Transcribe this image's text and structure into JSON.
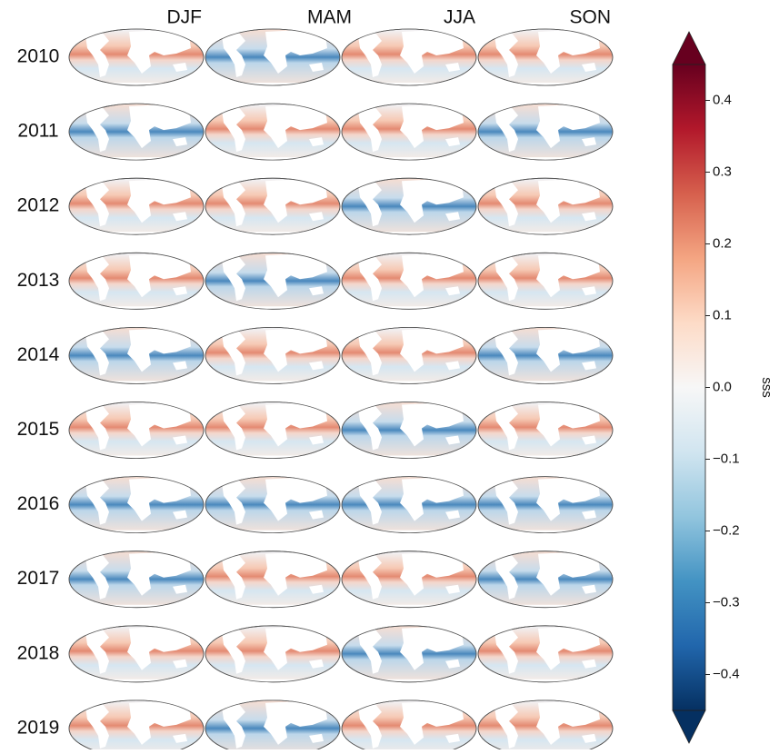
{
  "chart_data": {
    "type": "map-grid",
    "columns": [
      "DJF",
      "MAM",
      "JJA",
      "SON"
    ],
    "rows": [
      "2010",
      "2011",
      "2012",
      "2013",
      "2014",
      "2015",
      "2016",
      "2017",
      "2018",
      "2019"
    ],
    "colorbar": {
      "label": "sss",
      "lim": [
        -0.45,
        0.45
      ],
      "ticks": [
        {
          "value": -0.4,
          "label": "−0.4"
        },
        {
          "value": -0.3,
          "label": "−0.3"
        },
        {
          "value": -0.2,
          "label": "−0.2"
        },
        {
          "value": -0.1,
          "label": "−0.1"
        },
        {
          "value": 0,
          "label": "0.0"
        },
        0.1,
        0.2,
        0.3,
        0.4
      ],
      "colormap": [
        "#053061",
        "#2166ac",
        "#4393c3",
        "#92c5de",
        "#d1e5f0",
        "#f7f7f7",
        "#fddbc7",
        "#f4a582",
        "#d6604d",
        "#b2182b",
        "#67001f"
      ]
    }
  }
}
